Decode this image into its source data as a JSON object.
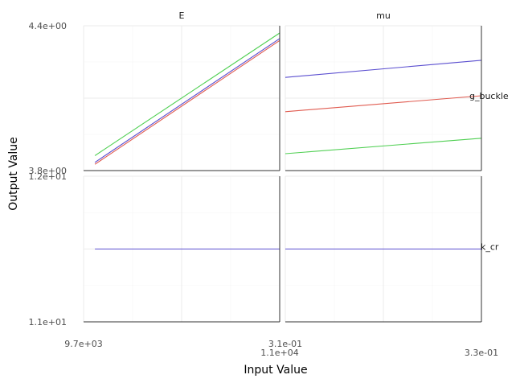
{
  "chart_data": {
    "type": "line",
    "xlabel": "Input Value",
    "ylabel": "Output Value",
    "col_facets": [
      "E",
      "mu"
    ],
    "row_facets": [
      "g_buckle",
      "k_cr"
    ],
    "x_tick_labels": {
      "E": [
        "9.7e+03",
        "1.1e+04"
      ],
      "mu": [
        "3.1e-01",
        "3.3e-01"
      ]
    },
    "y_tick_labels": {
      "g_buckle": [
        "3.8e+00",
        "4.4e+00"
      ],
      "k_cr": [
        "1.1e+01",
        "1.2e+01"
      ]
    },
    "x_ranges": {
      "E": [
        9700,
        11000
      ],
      "mu": [
        0.31,
        0.33
      ]
    },
    "y_ranges": {
      "g_buckle": [
        3.8,
        4.4
      ],
      "k_cr": [
        11.0,
        12.0
      ]
    },
    "series_colors": [
      "#e05a4f",
      "#5b4fd0",
      "#4fcf52"
    ],
    "panels": [
      {
        "col": "E",
        "row": "g_buckle",
        "series": [
          {
            "color": "#e05a4f",
            "x": [
              9775,
              11000
            ],
            "y": [
              3.826,
              4.339
            ]
          },
          {
            "color": "#5b4fd0",
            "x": [
              9775,
              11000
            ],
            "y": [
              3.834,
              4.347
            ]
          },
          {
            "color": "#4fcf52",
            "x": [
              9775,
              11000
            ],
            "y": [
              3.862,
              4.37
            ]
          }
        ]
      },
      {
        "col": "mu",
        "row": "g_buckle",
        "series": [
          {
            "color": "#e05a4f",
            "x": [
              0.31,
              0.33
            ],
            "y": [
              4.044,
              4.11
            ]
          },
          {
            "color": "#5b4fd0",
            "x": [
              0.31,
              0.33
            ],
            "y": [
              4.186,
              4.257
            ]
          },
          {
            "color": "#4fcf52",
            "x": [
              0.31,
              0.33
            ],
            "y": [
              3.87,
              3.934
            ]
          }
        ]
      },
      {
        "col": "E",
        "row": "k_cr",
        "series": [
          {
            "color": "#5b4fd0",
            "x": [
              9775,
              11000
            ],
            "y": [
              11.5,
              11.5
            ]
          }
        ]
      },
      {
        "col": "mu",
        "row": "k_cr",
        "series": [
          {
            "color": "#5b4fd0",
            "x": [
              0.31,
              0.33
            ],
            "y": [
              11.5,
              11.5
            ]
          }
        ]
      }
    ]
  }
}
